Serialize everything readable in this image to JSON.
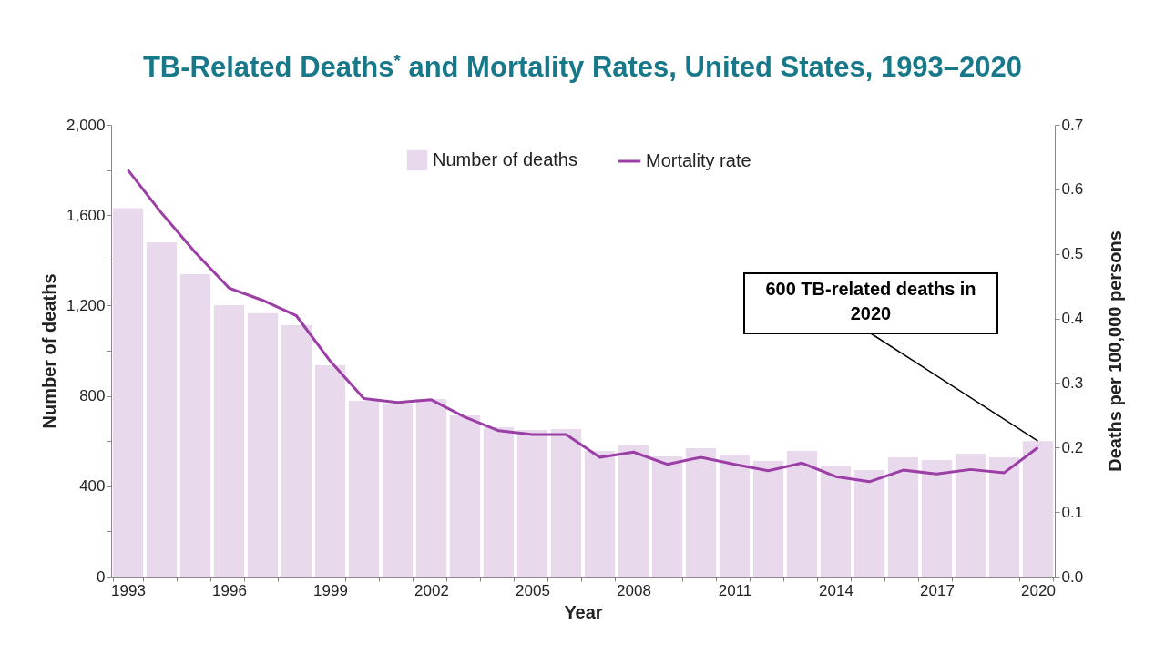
{
  "chart_data": {
    "type": "bar",
    "title": "TB-Related Deaths$^{*}$ and Mortality Rates, United States, 1993–2020",
    "xlabel": "Year",
    "ylabel": "Number of deaths",
    "y2label": "Deaths per 100,000 persons",
    "categories": [
      "1993",
      null,
      null,
      "1996",
      null,
      null,
      "1999",
      null,
      null,
      "2002",
      null,
      null,
      "2005",
      null,
      null,
      "2008",
      null,
      null,
      "2011",
      null,
      null,
      "2014",
      null,
      null,
      "2017",
      null,
      null,
      "2020"
    ],
    "series": [
      {
        "name": "Number of deaths",
        "color": "#e9d9ed",
        "values": [
          1631,
          1480,
          1339,
          1202,
          1166,
          1113,
          935,
          778,
          766,
          786,
          714,
          661,
          649,
          653,
          556,
          585,
          532,
          569,
          540,
          512,
          556,
          492,
          472,
          528,
          516,
          544,
          528,
          600
        ]
      },
      {
        "name": "Mortality rate",
        "type": "line",
        "axis": "y2",
        "color": "#9b3ea6",
        "values": [
          0.63,
          0.563,
          0.502,
          0.447,
          0.428,
          0.404,
          0.334,
          0.276,
          0.27,
          0.274,
          0.247,
          0.226,
          0.22,
          0.22,
          0.185,
          0.193,
          0.174,
          0.185,
          0.174,
          0.164,
          0.176,
          0.155,
          0.147,
          0.165,
          0.159,
          0.166,
          0.161,
          0.2
        ]
      }
    ],
    "ylim": [
      0,
      2000
    ],
    "yticks": [
      0,
      {
        "value": 200,
        "label": null
      },
      400,
      {
        "value": 600,
        "label": null
      },
      800,
      {
        "value": 1000,
        "label": null
      },
      {
        "value": 1200,
        "label": "1,200"
      },
      {
        "value": 1400,
        "label": null
      },
      {
        "value": 1600,
        "label": "1,600"
      },
      {
        "value": 1800,
        "label": null
      },
      {
        "value": 2000,
        "label": "2,000"
      }
    ],
    "y2lim": [
      0,
      0.7
    ],
    "y2ticks": [
      {
        "value": 0,
        "label": "0.0"
      },
      0.1,
      0.2,
      0.3,
      0.4,
      0.5,
      0.6,
      0.7
    ],
    "annotations": [
      {
        "text": "600 TB-related deaths in 2020",
        "x": "2020",
        "y": 600
      }
    ],
    "legend": "top",
    "grid": false
  }
}
